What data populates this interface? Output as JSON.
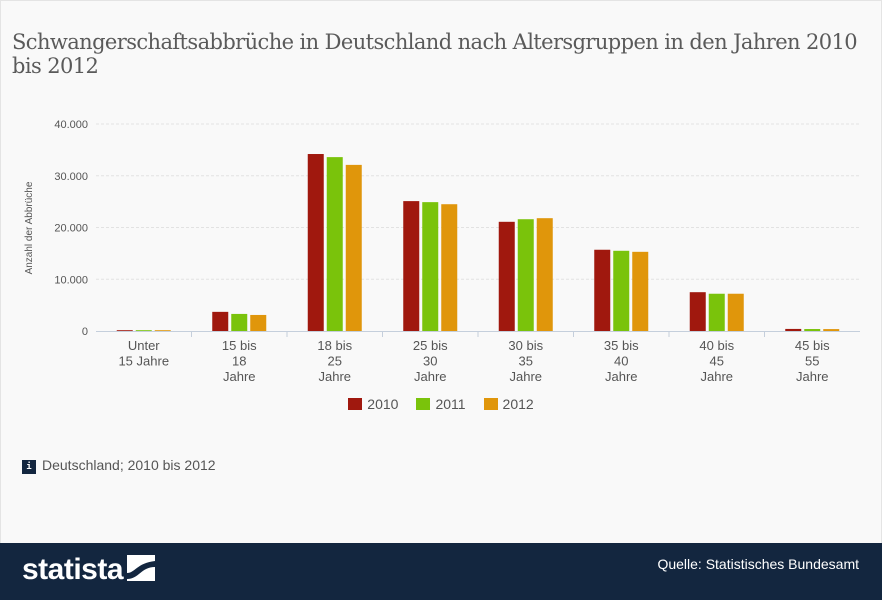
{
  "chart_data": {
    "type": "bar",
    "title": "Schwangerschaftsabbrüche in Deutschland nach Altersgruppen in den Jahren 2010 bis 2012",
    "xlabel": "",
    "ylabel": "Anzahl der Abbrüche",
    "ylim": [
      0,
      40000
    ],
    "yticks": [
      0,
      10000,
      20000,
      30000,
      40000
    ],
    "ytick_labels": [
      "0",
      "10.000",
      "20.000",
      "30.000",
      "40.000"
    ],
    "grid": true,
    "legend_position": "bottom-center",
    "categories": [
      [
        "Unter",
        "15 Jahre"
      ],
      [
        "15 bis",
        "18",
        "Jahre"
      ],
      [
        "18 bis",
        "25",
        "Jahre"
      ],
      [
        "25 bis",
        "30",
        "Jahre"
      ],
      [
        "30 bis",
        "35",
        "Jahre"
      ],
      [
        "35 bis",
        "40",
        "Jahre"
      ],
      [
        "40 bis",
        "45",
        "Jahre"
      ],
      [
        "45 bis",
        "55",
        "Jahre"
      ]
    ],
    "series": [
      {
        "name": "2010",
        "color": "#a0180e",
        "values": [
          100,
          3700,
          34200,
          25100,
          21100,
          15700,
          7500,
          400
        ]
      },
      {
        "name": "2011",
        "color": "#7ac30b",
        "values": [
          90,
          3300,
          33600,
          24900,
          21600,
          15500,
          7200,
          380
        ]
      },
      {
        "name": "2012",
        "color": "#e0960b",
        "values": [
          80,
          3100,
          32100,
          24500,
          21800,
          15300,
          7200,
          370
        ]
      }
    ]
  },
  "info": {
    "text": "Deutschland; 2010 bis 2012",
    "icon": "info-icon"
  },
  "footer": {
    "logo": "statista",
    "source": "Quelle: Statistisches Bundesamt"
  }
}
